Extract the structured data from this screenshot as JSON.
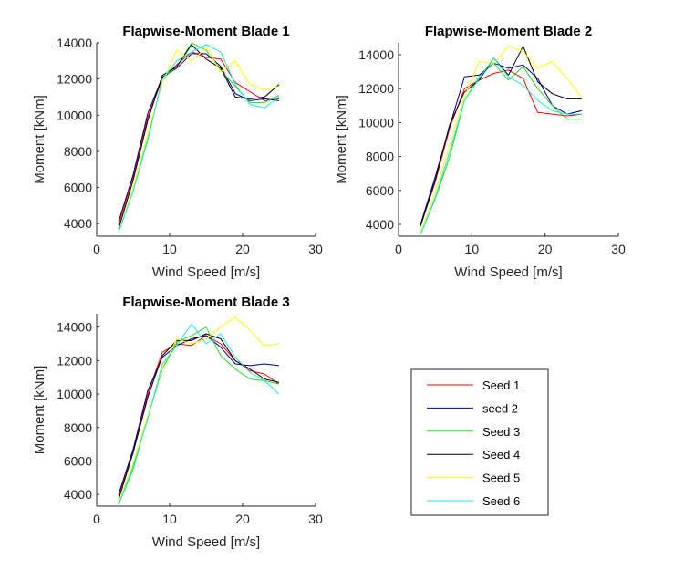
{
  "chart_data": [
    {
      "type": "line",
      "title": "Flapwise-Moment Blade 1",
      "xlabel": "Wind Speed [m/s]",
      "ylabel": "Moment [kNm]",
      "xlim": [
        0,
        30
      ],
      "ylim": [
        3300,
        14000
      ],
      "xticks": [
        0,
        10,
        20,
        30
      ],
      "yticks": [
        4000,
        6000,
        8000,
        10000,
        12000,
        14000
      ],
      "x": [
        3,
        5,
        7,
        9,
        11,
        13,
        15,
        17,
        19,
        21,
        23,
        25
      ],
      "series": [
        {
          "name": "Seed 1",
          "color": "#ff0000",
          "values": [
            3900,
            6600,
            9900,
            12000,
            12800,
            13500,
            13200,
            13100,
            11800,
            11300,
            10800,
            10900
          ]
        },
        {
          "name": "seed 2",
          "color": "#00008b",
          "values": [
            4100,
            6700,
            10100,
            12100,
            12600,
            13400,
            13400,
            12700,
            11200,
            10800,
            10900,
            10800
          ]
        },
        {
          "name": "Seed 3",
          "color": "#22dd22",
          "values": [
            3500,
            5800,
            8700,
            12000,
            12700,
            14000,
            13600,
            12500,
            11600,
            10700,
            10700,
            11100
          ]
        },
        {
          "name": "Seed 4",
          "color": "#000000",
          "values": [
            3700,
            6400,
            9700,
            12200,
            12700,
            13900,
            13100,
            12600,
            11000,
            10900,
            11000,
            11700
          ]
        },
        {
          "name": "Seed 5",
          "color": "#ffff00",
          "values": [
            3500,
            6000,
            9000,
            11800,
            13600,
            13000,
            13700,
            12400,
            13000,
            11700,
            11400,
            11600
          ]
        },
        {
          "name": "Seed 6",
          "color": "#22e5e5",
          "values": [
            3500,
            5800,
            8600,
            12000,
            13000,
            13500,
            13900,
            13500,
            11700,
            10600,
            10400,
            11000
          ]
        }
      ]
    },
    {
      "type": "line",
      "title": "Flapwise-Moment Blade 2",
      "xlabel": "Wind Speed [m/s]",
      "ylabel": "Moment [kNm]",
      "xlim": [
        0,
        30
      ],
      "ylim": [
        3300,
        14700
      ],
      "xticks": [
        0,
        10,
        20,
        30
      ],
      "yticks": [
        4000,
        6000,
        8000,
        10000,
        12000,
        14000
      ],
      "x": [
        3,
        5,
        7,
        9,
        11,
        13,
        15,
        17,
        19,
        21,
        23,
        25
      ],
      "series": [
        {
          "name": "Seed 1",
          "color": "#ff0000",
          "values": [
            3900,
            6500,
            9700,
            12000,
            12500,
            12900,
            13100,
            12600,
            10600,
            10500,
            10400,
            10500
          ]
        },
        {
          "name": "seed 2",
          "color": "#00008b",
          "values": [
            4000,
            6800,
            9800,
            12700,
            12800,
            13500,
            13200,
            13400,
            12600,
            11000,
            10500,
            10700
          ]
        },
        {
          "name": "Seed 3",
          "color": "#22dd22",
          "values": [
            3400,
            5500,
            8000,
            11300,
            12700,
            13500,
            12500,
            13300,
            12000,
            11000,
            10200,
            10200
          ]
        },
        {
          "name": "Seed 4",
          "color": "#000000",
          "values": [
            3900,
            6600,
            9900,
            11800,
            12500,
            13800,
            12800,
            14500,
            12400,
            11700,
            11400,
            11400
          ]
        },
        {
          "name": "Seed 5",
          "color": "#ffff00",
          "values": [
            3500,
            5900,
            8700,
            11500,
            13600,
            13500,
            14500,
            14200,
            13200,
            13600,
            12600,
            11500
          ]
        },
        {
          "name": "Seed 6",
          "color": "#22e5e5",
          "values": [
            3400,
            5600,
            8300,
            11300,
            12600,
            13800,
            12700,
            12200,
            11300,
            10700,
            10500,
            10500
          ]
        }
      ]
    },
    {
      "type": "line",
      "title": "Flapwise-Moment Blade 3",
      "xlabel": "Wind Speed [m/s]",
      "ylabel": "Moment [kNm]",
      "xlim": [
        0,
        30
      ],
      "ylim": [
        3300,
        14800
      ],
      "xticks": [
        0,
        10,
        20,
        30
      ],
      "yticks": [
        4000,
        6000,
        8000,
        10000,
        12000,
        14000
      ],
      "x": [
        3,
        5,
        7,
        9,
        11,
        13,
        15,
        17,
        19,
        21,
        23,
        25
      ],
      "series": [
        {
          "name": "Seed 1",
          "color": "#ff0000",
          "values": [
            3900,
            6600,
            10000,
            12500,
            13000,
            12900,
            13500,
            13000,
            12000,
            11400,
            11200,
            10600
          ]
        },
        {
          "name": "seed 2",
          "color": "#00008b",
          "values": [
            4000,
            6700,
            10200,
            12200,
            12900,
            13300,
            13500,
            12800,
            11800,
            11700,
            11800,
            11700
          ]
        },
        {
          "name": "Seed 3",
          "color": "#22dd22",
          "values": [
            3400,
            5500,
            8600,
            11500,
            13100,
            13500,
            14000,
            12300,
            11500,
            10900,
            10800,
            10600
          ]
        },
        {
          "name": "Seed 4",
          "color": "#000000",
          "values": [
            3700,
            6500,
            9800,
            12300,
            13200,
            13200,
            13600,
            13300,
            12000,
            11500,
            10900,
            10700
          ]
        },
        {
          "name": "Seed 5",
          "color": "#ffff00",
          "values": [
            3500,
            5900,
            8700,
            11600,
            13300,
            13000,
            13300,
            14000,
            14600,
            13800,
            12900,
            13000
          ]
        },
        {
          "name": "Seed 6",
          "color": "#22e5e5",
          "values": [
            3400,
            5700,
            8500,
            11800,
            12900,
            14200,
            13000,
            13600,
            12200,
            11300,
            10800,
            10000
          ]
        }
      ]
    }
  ],
  "legend": {
    "entries": [
      {
        "label": "Seed 1",
        "color": "#ff0000"
      },
      {
        "label": "seed 2",
        "color": "#00008b"
      },
      {
        "label": "Seed 3",
        "color": "#22dd22"
      },
      {
        "label": "Seed 4",
        "color": "#000000"
      },
      {
        "label": "Seed 5",
        "color": "#ffff00"
      },
      {
        "label": "Seed 6",
        "color": "#22e5e5"
      }
    ]
  }
}
